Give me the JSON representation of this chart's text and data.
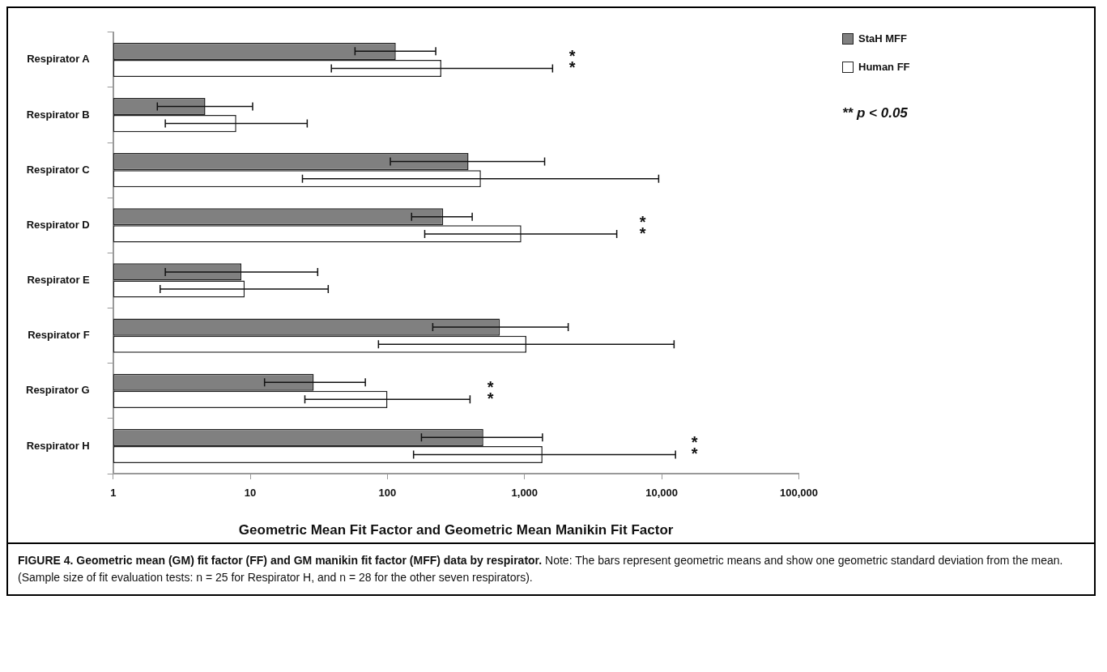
{
  "chart_data": {
    "type": "bar",
    "orientation": "horizontal",
    "title": "FIGURE 4. Geometric mean (GM) fit factor (FF) and GM manikin fit factor (MFF) data by respirator.",
    "xlabel": "Geometric Mean Fit Factor and Geometric Mean Manikin Fit Factor",
    "categories": [
      "Respirator A",
      "Respirator B",
      "Respirator C",
      "Respirator D",
      "Respirator E",
      "Respirator F",
      "Respirator G",
      "Respirator H"
    ],
    "series": [
      {
        "name": "StaH MFF",
        "color": "#808080",
        "values": [
          115,
          4.7,
          390,
          255,
          8.6,
          660,
          29,
          500
        ],
        "errors": [
          [
            58,
            225
          ],
          [
            2.1,
            10.4
          ],
          [
            105,
            1400
          ],
          [
            150,
            415
          ],
          [
            2.4,
            31
          ],
          [
            214,
            2080
          ],
          [
            12.7,
            69
          ],
          [
            177,
            1350
          ]
        ]
      },
      {
        "name": "Human FF",
        "color": "#ffffff",
        "values": [
          247,
          7.9,
          480,
          946,
          9.1,
          1030,
          100,
          1350
        ],
        "errors": [
          [
            39,
            1600
          ],
          [
            2.4,
            26
          ],
          [
            24,
            9500
          ],
          [
            187,
            4700
          ],
          [
            2.2,
            37
          ],
          [
            86,
            12300
          ],
          [
            25,
            400
          ],
          [
            155,
            12600
          ]
        ]
      }
    ],
    "log": "x",
    "xlim": [
      1,
      100000
    ],
    "xticks": [
      1,
      10,
      100,
      {
        "value": 1000,
        "label": "1,000"
      },
      {
        "value": 10000,
        "label": "10,000"
      },
      {
        "value": 100000,
        "label": "100,000"
      }
    ],
    "grid": false,
    "legend": "top right",
    "annotations": [
      "**",
      "**",
      "**",
      "**",
      "** p < 0.05",
      "Note: The bars represent geometric means and show one geometric standard deviation from the mean. (Sample size of fit evaluation tests: n = 25 for Respirator H, and n = 28 for the other seven respirators)."
    ]
  }
}
